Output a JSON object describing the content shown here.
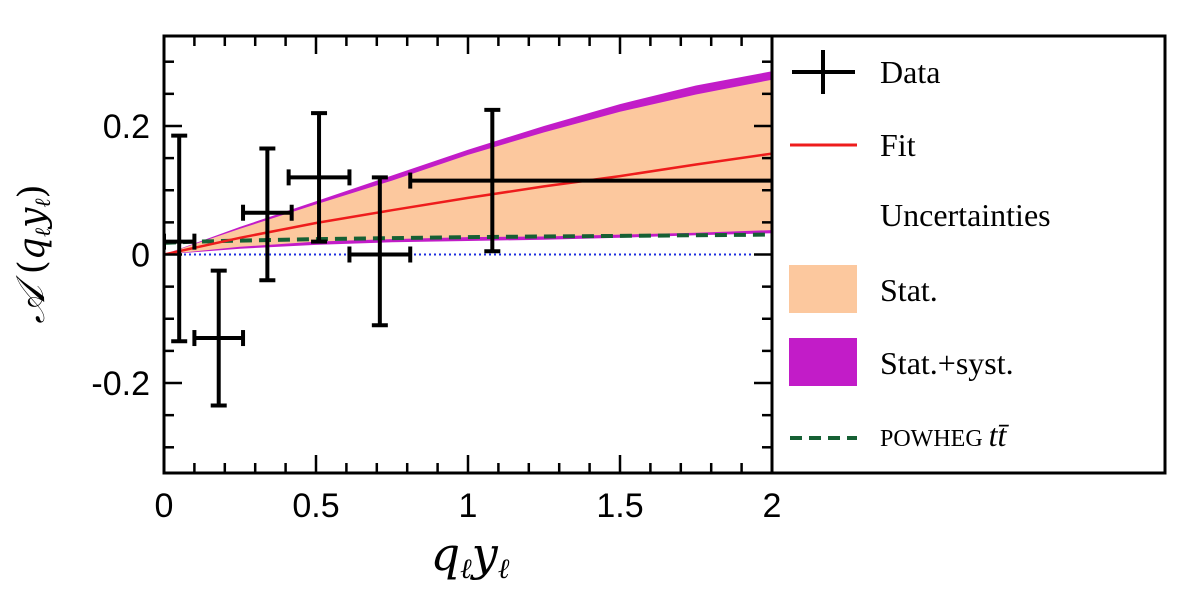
{
  "chart_data": {
    "type": "scatter",
    "xlabel": "q_ℓ y_ℓ",
    "ylabel": "A (q_ℓ y_ℓ)",
    "xlim": [
      0,
      2
    ],
    "ylim": [
      -0.34,
      0.34
    ],
    "x_ticks": [
      {
        "value": 0,
        "label": "0"
      },
      {
        "value": 0.5,
        "label": "0.5"
      },
      {
        "value": 1,
        "label": "1"
      },
      {
        "value": 1.5,
        "label": "1.5"
      },
      {
        "value": 2,
        "label": "2"
      }
    ],
    "y_ticks": [
      {
        "value": -0.2,
        "label": "-0.2"
      },
      {
        "value": 0,
        "label": "0"
      },
      {
        "value": 0.2,
        "label": "0.2"
      }
    ],
    "data_points": [
      {
        "x": 0.05,
        "y": 0.02,
        "xerr": [
          0.05,
          0.05
        ],
        "yerr": [
          0.155,
          0.165
        ]
      },
      {
        "x": 0.18,
        "y": -0.13,
        "xerr": [
          0.08,
          0.08
        ],
        "yerr": [
          0.105,
          0.105
        ]
      },
      {
        "x": 0.34,
        "y": 0.065,
        "xerr": [
          0.08,
          0.08
        ],
        "yerr": [
          0.105,
          0.1
        ]
      },
      {
        "x": 0.51,
        "y": 0.12,
        "xerr": [
          0.1,
          0.1
        ],
        "yerr": [
          0.1,
          0.1
        ]
      },
      {
        "x": 0.71,
        "y": 0.0,
        "xerr": [
          0.1,
          0.1
        ],
        "yerr": [
          0.11,
          0.12
        ]
      },
      {
        "x": 1.08,
        "y": 0.115,
        "xerr": [
          0.27,
          0.92
        ],
        "yerr": [
          0.11,
          0.11
        ]
      }
    ],
    "fit": {
      "x": [
        0,
        0.25,
        0.5,
        0.75,
        1.0,
        1.25,
        1.5,
        1.75,
        2.0
      ],
      "y": [
        0,
        0.026,
        0.049,
        0.069,
        0.088,
        0.106,
        0.122,
        0.14,
        0.157
      ]
    },
    "band_stat": {
      "x": [
        0,
        0.25,
        0.5,
        0.75,
        1.0,
        1.25,
        1.5,
        1.75,
        2.0
      ],
      "upper": [
        0,
        0.04,
        0.078,
        0.115,
        0.155,
        0.19,
        0.222,
        0.249,
        0.272
      ],
      "lower": [
        0,
        0.012,
        0.02,
        0.024,
        0.027,
        0.028,
        0.031,
        0.034,
        0.038
      ]
    },
    "band_syst": {
      "x": [
        0,
        0.25,
        0.5,
        0.75,
        1.0,
        1.25,
        1.5,
        1.75,
        2.0
      ],
      "upper": [
        0,
        0.043,
        0.083,
        0.123,
        0.163,
        0.2,
        0.234,
        0.263,
        0.285
      ],
      "lower": [
        0,
        0.009,
        0.015,
        0.019,
        0.021,
        0.023,
        0.026,
        0.03,
        0.033
      ]
    },
    "powheg": {
      "x": [
        0,
        0.1,
        0.5,
        1.0,
        1.5,
        2.0
      ],
      "y": [
        0.018,
        0.02,
        0.024,
        0.027,
        0.029,
        0.031
      ]
    },
    "zero_line": {
      "x": [
        0,
        2
      ],
      "y": [
        0,
        0
      ]
    },
    "colors": {
      "data": "#000000",
      "fit": "#ee1c1c",
      "stat": "#fcc89e",
      "syst": "#c21cc8",
      "powheg": "#166034",
      "zero": "#1c2ee0"
    },
    "legend": {
      "placement": "right",
      "entries": {
        "data": "Data",
        "fit": "Fit",
        "uncertainties": "Uncertainties",
        "stat": "Stat.",
        "syst": "Stat.+syst.",
        "powheg_prefix": "POWHEG",
        "powheg_suffix": "tt̄"
      }
    }
  }
}
